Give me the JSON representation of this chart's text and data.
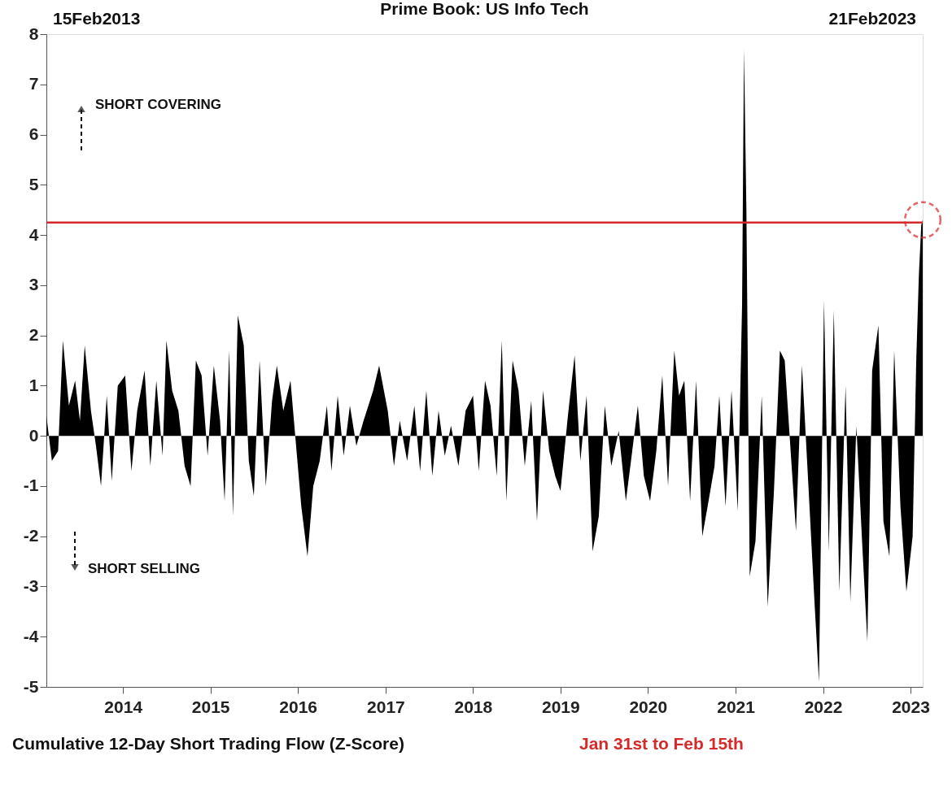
{
  "chart_data": {
    "type": "area",
    "title": "Prime Book: US Info Tech",
    "xlabel": "Cumulative 12-Day Short Trading Flow (Z-Score)",
    "annotations": [
      "SHORT COVERING",
      "SHORT SELLING",
      "Jan 31st to Feb 15th",
      "15Feb2013",
      "21Feb2023"
    ],
    "xlim": [
      "2013-02-15",
      "2023-02-21"
    ],
    "xticks": [
      {
        "value": "2014-01-01",
        "label": "2014"
      },
      {
        "value": "2015-01-01",
        "label": "2015"
      },
      {
        "value": "2016-01-01",
        "label": "2016"
      },
      {
        "value": "2017-01-01",
        "label": "2017"
      },
      {
        "value": "2018-01-01",
        "label": "2018"
      },
      {
        "value": "2019-01-01",
        "label": "2019"
      },
      {
        "value": "2020-01-01",
        "label": "2020"
      },
      {
        "value": "2021-01-01",
        "label": "2021"
      },
      {
        "value": "2022-01-01",
        "label": "2022"
      },
      {
        "value": "2023-01-01",
        "label": "2023"
      }
    ],
    "ylim": [
      -5,
      8
    ],
    "yticks": [
      -5,
      -4,
      -3,
      -2,
      -1,
      0,
      1,
      2,
      3,
      4,
      5,
      6,
      7,
      8
    ],
    "ref_lines": [
      {
        "axis": "y",
        "value": 4.25,
        "color": "#d42a2a"
      }
    ],
    "x": [
      "2013-02-15",
      "2013-03-10",
      "2013-04-05",
      "2013-04-25",
      "2013-05-20",
      "2013-06-15",
      "2013-07-05",
      "2013-07-25",
      "2013-08-20",
      "2013-09-10",
      "2013-10-01",
      "2013-10-25",
      "2013-11-15",
      "2013-12-10",
      "2014-01-10",
      "2014-02-05",
      "2014-03-01",
      "2014-04-01",
      "2014-04-25",
      "2014-05-20",
      "2014-06-15",
      "2014-07-01",
      "2014-07-25",
      "2014-08-20",
      "2014-09-15",
      "2014-10-10",
      "2014-11-01",
      "2014-11-25",
      "2014-12-20",
      "2015-01-15",
      "2015-02-10",
      "2015-03-01",
      "2015-03-20",
      "2015-04-05",
      "2015-04-25",
      "2015-05-20",
      "2015-06-10",
      "2015-07-01",
      "2015-07-25",
      "2015-08-20",
      "2015-09-15",
      "2015-10-05",
      "2015-11-01",
      "2015-12-01",
      "2016-01-15",
      "2016-02-10",
      "2016-03-05",
      "2016-04-01",
      "2016-05-01",
      "2016-05-20",
      "2016-06-15",
      "2016-07-10",
      "2016-08-05",
      "2016-09-01",
      "2016-10-01",
      "2016-11-10",
      "2016-12-05",
      "2017-01-10",
      "2017-02-05",
      "2017-03-01",
      "2017-04-01",
      "2017-05-01",
      "2017-05-25",
      "2017-06-20",
      "2017-07-15",
      "2017-08-10",
      "2017-09-05",
      "2017-10-01",
      "2017-11-01",
      "2017-12-01",
      "2018-01-01",
      "2018-01-25",
      "2018-02-20",
      "2018-03-15",
      "2018-04-10",
      "2018-05-01",
      "2018-05-20",
      "2018-06-15",
      "2018-07-10",
      "2018-08-05",
      "2018-09-01",
      "2018-09-25",
      "2018-10-20",
      "2018-11-15",
      "2018-12-10",
      "2019-01-01",
      "2019-02-01",
      "2019-03-01",
      "2019-03-25",
      "2019-04-20",
      "2019-05-15",
      "2019-06-10",
      "2019-07-05",
      "2019-08-01",
      "2019-09-01",
      "2019-10-01",
      "2019-10-25",
      "2019-11-20",
      "2019-12-15",
      "2020-01-10",
      "2020-02-05",
      "2020-03-01",
      "2020-03-25",
      "2020-04-20",
      "2020-05-10",
      "2020-06-01",
      "2020-06-25",
      "2020-07-20",
      "2020-08-15",
      "2020-09-10",
      "2020-10-05",
      "2020-10-25",
      "2020-11-20",
      "2020-12-15",
      "2021-01-10",
      "2021-01-28",
      "2021-02-05",
      "2021-02-15",
      "2021-03-01",
      "2021-03-25",
      "2021-04-20",
      "2021-05-15",
      "2021-06-10",
      "2021-07-05",
      "2021-07-25",
      "2021-08-20",
      "2021-09-10",
      "2021-10-05",
      "2021-11-01",
      "2021-11-25",
      "2021-12-15",
      "2022-01-05",
      "2022-01-25",
      "2022-02-15",
      "2022-03-10",
      "2022-04-05",
      "2022-04-25",
      "2022-05-20",
      "2022-06-15",
      "2022-07-05",
      "2022-07-25",
      "2022-08-20",
      "2022-09-10",
      "2022-10-05",
      "2022-10-25",
      "2022-11-20",
      "2022-12-15",
      "2023-01-10",
      "2023-01-25",
      "2023-02-05",
      "2023-02-15",
      "2023-02-21"
    ],
    "series": [
      {
        "color": "#000000",
        "values": [
          0.4,
          -0.5,
          -0.3,
          1.9,
          0.6,
          1.1,
          0.3,
          1.8,
          0.5,
          -0.2,
          -1.0,
          0.8,
          -0.9,
          1.0,
          1.2,
          -0.7,
          0.5,
          1.3,
          -0.6,
          1.1,
          -0.4,
          1.9,
          0.9,
          0.5,
          -0.6,
          -1.0,
          1.5,
          1.2,
          -0.4,
          1.4,
          0.3,
          -1.3,
          1.7,
          -1.6,
          2.4,
          1.8,
          -0.5,
          -1.2,
          1.5,
          -1.0,
          0.7,
          1.4,
          0.5,
          1.1,
          -1.4,
          -2.4,
          -1.0,
          -0.5,
          0.6,
          -0.7,
          0.8,
          -0.4,
          0.6,
          -0.2,
          0.3,
          0.9,
          1.4,
          0.5,
          -0.6,
          0.3,
          -0.5,
          0.6,
          -0.7,
          0.9,
          -0.8,
          0.5,
          -0.4,
          0.2,
          -0.6,
          0.5,
          0.8,
          -0.7,
          1.1,
          0.6,
          -0.8,
          1.9,
          -1.3,
          1.5,
          0.9,
          -0.6,
          0.7,
          -1.7,
          0.9,
          -0.3,
          -0.8,
          -1.1,
          0.4,
          1.6,
          -0.5,
          0.8,
          -2.3,
          -1.6,
          0.6,
          -0.6,
          0.1,
          -1.3,
          -0.4,
          0.6,
          -0.8,
          -1.3,
          -0.3,
          1.2,
          -1.0,
          1.7,
          0.8,
          1.1,
          -1.3,
          1.1,
          -2.0,
          -1.3,
          -0.6,
          0.8,
          -1.4,
          0.9,
          -1.5,
          2.6,
          7.7,
          4.5,
          -2.8,
          -2.1,
          0.8,
          -3.4,
          -1.1,
          1.7,
          1.5,
          -0.4,
          -1.9,
          1.4,
          -1.0,
          -3.2,
          -4.9,
          2.7,
          -2.3,
          2.5,
          -3.1,
          1.0,
          -3.3,
          0.2,
          -2.3,
          -4.1,
          1.3,
          2.2,
          -1.7,
          -2.4,
          1.7,
          -1.4,
          -3.1,
          -2.0,
          1.5,
          3.2,
          4.2,
          4.3
        ]
      }
    ]
  }
}
